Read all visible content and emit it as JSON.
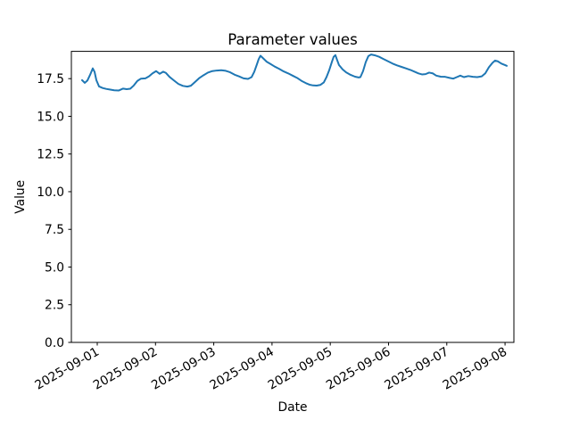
{
  "chart_data": {
    "type": "line",
    "title": "Parameter values",
    "xlabel": "Date",
    "ylabel": "Value",
    "grid": false,
    "legend": false,
    "line_color": "#1f77b4",
    "background_color": "#ffffff",
    "axis_color": "#000000",
    "ylim": [
      0,
      19.31
    ],
    "xlim_days": [
      -0.444,
      7.152
    ],
    "y_tick_values": [
      0,
      2.5,
      5,
      7.5,
      10,
      12.5,
      15,
      17.5
    ],
    "y_tick_labels": [
      "0.0",
      "2.5",
      "5.0",
      "7.5",
      "10.0",
      "12.5",
      "15.0",
      "17.5"
    ],
    "x_tick_days": [
      0,
      1,
      2,
      3,
      4,
      5,
      6,
      7
    ],
    "x_tick_labels": [
      "2025-09-01",
      "2025-09-02",
      "2025-09-03",
      "2025-09-04",
      "2025-09-05",
      "2025-09-06",
      "2025-09-07",
      "2025-09-08"
    ],
    "x_tick_rotation_deg": 30,
    "series": [
      {
        "name": "parameter-values",
        "x_days_from_2025_09_01": [
          -0.26,
          -0.214,
          -0.168,
          -0.123,
          -0.077,
          -0.046,
          -0.015,
          0.031,
          0.092,
          0.153,
          0.214,
          0.291,
          0.367,
          0.444,
          0.505,
          0.567,
          0.628,
          0.689,
          0.75,
          0.827,
          0.888,
          0.949,
          1.011,
          1.072,
          1.133,
          1.179,
          1.24,
          1.317,
          1.393,
          1.47,
          1.547,
          1.608,
          1.684,
          1.746,
          1.822,
          1.899,
          1.975,
          2.052,
          2.128,
          2.205,
          2.282,
          2.358,
          2.435,
          2.511,
          2.588,
          2.649,
          2.695,
          2.741,
          2.772,
          2.802,
          2.848,
          2.909,
          2.971,
          3.047,
          3.124,
          3.2,
          3.277,
          3.353,
          3.43,
          3.507,
          3.583,
          3.644,
          3.706,
          3.767,
          3.828,
          3.889,
          3.935,
          3.981,
          4.027,
          4.058,
          4.088,
          4.119,
          4.15,
          4.211,
          4.272,
          4.349,
          4.425,
          4.487,
          4.517,
          4.563,
          4.609,
          4.655,
          4.701,
          4.762,
          4.839,
          4.915,
          4.992,
          5.069,
          5.145,
          5.222,
          5.299,
          5.375,
          5.452,
          5.513,
          5.574,
          5.635,
          5.697,
          5.758,
          5.819,
          5.896,
          5.972,
          6.049,
          6.11,
          6.171,
          6.232,
          6.294,
          6.37,
          6.447,
          6.523,
          6.6,
          6.661,
          6.722,
          6.784,
          6.829,
          6.875,
          6.937,
          6.998,
          7.029
        ],
        "values": [
          17.4,
          17.22,
          17.38,
          17.75,
          18.18,
          17.95,
          17.4,
          16.98,
          16.88,
          16.82,
          16.78,
          16.73,
          16.71,
          16.84,
          16.8,
          16.83,
          17.05,
          17.35,
          17.5,
          17.52,
          17.65,
          17.85,
          18.0,
          17.82,
          17.96,
          17.88,
          17.62,
          17.38,
          17.15,
          17.02,
          16.97,
          17.03,
          17.3,
          17.52,
          17.72,
          17.9,
          18.0,
          18.04,
          18.06,
          18.02,
          17.92,
          17.76,
          17.65,
          17.52,
          17.48,
          17.6,
          17.95,
          18.45,
          18.8,
          19.02,
          18.85,
          18.62,
          18.48,
          18.3,
          18.15,
          17.98,
          17.85,
          17.7,
          17.55,
          17.35,
          17.2,
          17.1,
          17.05,
          17.04,
          17.08,
          17.25,
          17.6,
          18.05,
          18.6,
          18.95,
          19.06,
          18.72,
          18.4,
          18.12,
          17.92,
          17.75,
          17.63,
          17.58,
          17.6,
          18.0,
          18.6,
          19.0,
          19.1,
          19.05,
          18.95,
          18.8,
          18.65,
          18.5,
          18.38,
          18.28,
          18.18,
          18.08,
          17.95,
          17.85,
          17.78,
          17.8,
          17.9,
          17.85,
          17.7,
          17.63,
          17.62,
          17.55,
          17.5,
          17.6,
          17.7,
          17.6,
          17.67,
          17.62,
          17.6,
          17.65,
          17.85,
          18.25,
          18.55,
          18.7,
          18.65,
          18.5,
          18.4,
          18.35
        ]
      }
    ]
  }
}
